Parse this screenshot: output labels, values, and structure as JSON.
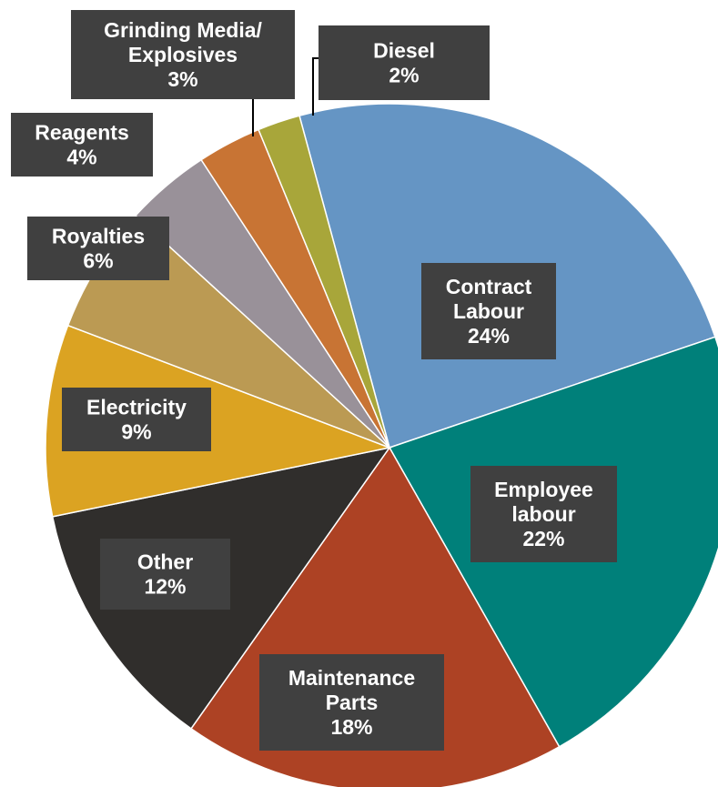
{
  "chart_data": {
    "type": "pie",
    "slices": [
      {
        "name": "Contract Labour",
        "label_lines": [
          "Contract",
          "Labour"
        ],
        "value": 24,
        "value_label": "24%",
        "color": "#6595c4"
      },
      {
        "name": "Employee labour",
        "label_lines": [
          "Employee",
          "labour"
        ],
        "value": 22,
        "value_label": "22%",
        "color": "#00807a"
      },
      {
        "name": "Maintenance Parts",
        "label_lines": [
          "Maintenance",
          "Parts"
        ],
        "value": 18,
        "value_label": "18%",
        "color": "#ad4224"
      },
      {
        "name": "Other",
        "label_lines": [
          "Other"
        ],
        "value": 12,
        "value_label": "12%",
        "color": "#302e2c"
      },
      {
        "name": "Electricity",
        "label_lines": [
          "Electricity"
        ],
        "value": 9,
        "value_label": "9%",
        "color": "#dba322"
      },
      {
        "name": "Royalties",
        "label_lines": [
          "Royalties"
        ],
        "value": 6,
        "value_label": "6%",
        "color": "#bb9a53"
      },
      {
        "name": "Reagents",
        "label_lines": [
          "Reagents"
        ],
        "value": 4,
        "value_label": "4%",
        "color": "#999199"
      },
      {
        "name": "Grinding Media/Explosives",
        "label_lines": [
          "Grinding Media/",
          "Explosives"
        ],
        "value": 3,
        "value_label": "3%",
        "color": "#c87434"
      },
      {
        "name": "Diesel",
        "label_lines": [
          "Diesel"
        ],
        "value": 2,
        "value_label": "2%",
        "color": "#a8a63a"
      }
    ]
  }
}
